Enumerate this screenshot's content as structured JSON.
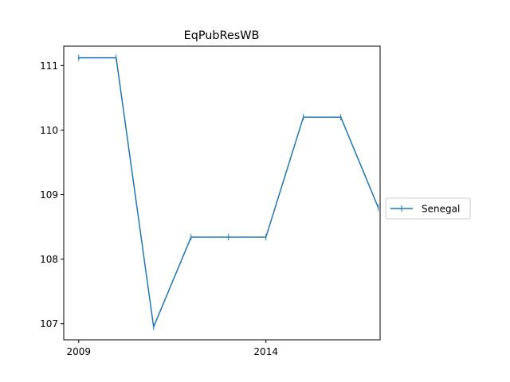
{
  "chart_data": {
    "type": "line",
    "title": "EqPubResWB",
    "xlabel": "",
    "ylabel": "",
    "x": [
      2009,
      2010,
      2011,
      2012,
      2013,
      2014,
      2015,
      2016,
      2017
    ],
    "series": [
      {
        "name": "Senegal",
        "color": "#1f77b4",
        "marker": "vertical-line",
        "values": [
          111.12,
          111.12,
          106.95,
          108.34,
          108.34,
          108.34,
          110.2,
          110.2,
          108.8
        ]
      }
    ],
    "xlim": [
      2008.6,
      2017.05
    ],
    "ylim": [
      106.75,
      111.3
    ],
    "xticks": [
      "2009",
      "2014"
    ],
    "yticks": [
      "107",
      "108",
      "109",
      "110",
      "111"
    ],
    "grid": false,
    "legend_position": "outside-right"
  }
}
